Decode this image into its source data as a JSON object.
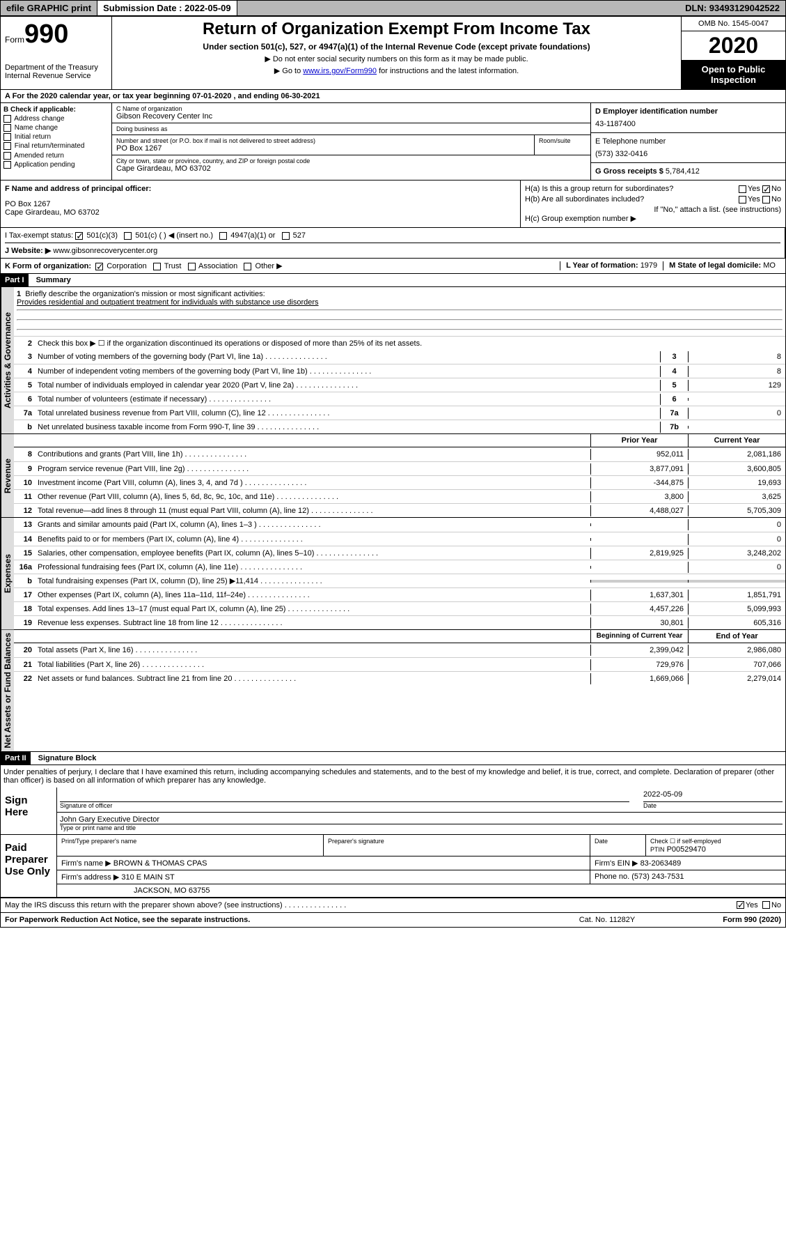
{
  "topbar": {
    "efile": "efile GRAPHIC print",
    "sub_label": "Submission Date :",
    "sub_date": "2022-05-09",
    "dln_label": "DLN:",
    "dln": "93493129042522"
  },
  "header": {
    "form_label": "Form",
    "form_num": "990",
    "dept": "Department of the Treasury\nInternal Revenue Service",
    "title": "Return of Organization Exempt From Income Tax",
    "subtitle": "Under section 501(c), 527, or 4947(a)(1) of the Internal Revenue Code (except private foundations)",
    "note1": "▶ Do not enter social security numbers on this form as it may be made public.",
    "note2_pre": "▶ Go to ",
    "note2_link": "www.irs.gov/Form990",
    "note2_post": " for instructions and the latest information.",
    "omb": "OMB No. 1545-0047",
    "year": "2020",
    "inspect": "Open to Public Inspection"
  },
  "row_a": "A For the 2020 calendar year, or tax year beginning 07-01-2020   , and ending 06-30-2021",
  "col_b": {
    "title": "B Check if applicable:",
    "items": [
      "Address change",
      "Name change",
      "Initial return",
      "Final return/terminated",
      "Amended return",
      "Application pending"
    ]
  },
  "col_c": {
    "name_label": "C Name of organization",
    "name": "Gibson Recovery Center Inc",
    "dba_label": "Doing business as",
    "dba": "",
    "street_label": "Number and street (or P.O. box if mail is not delivered to street address)",
    "street": "PO Box 1267",
    "room_label": "Room/suite",
    "city_label": "City or town, state or province, country, and ZIP or foreign postal code",
    "city": "Cape Girardeau, MO  63702"
  },
  "col_d": {
    "label": "D Employer identification number",
    "value": "43-1187400"
  },
  "col_e": {
    "label": "E Telephone number",
    "value": "(573) 332-0416"
  },
  "col_g": {
    "label": "G Gross receipts $",
    "value": "5,784,412"
  },
  "col_f": {
    "label": "F  Name and address of principal officer:",
    "addr1": "PO Box 1267",
    "addr2": "Cape Girardeau, MO  63702"
  },
  "col_h": {
    "a_label": "H(a)  Is this a group return for subordinates?",
    "b_label": "H(b)  Are all subordinates included?",
    "b_note": "If \"No,\" attach a list. (see instructions)",
    "c_label": "H(c)  Group exemption number ▶"
  },
  "row_i": {
    "label": "I   Tax-exempt status:",
    "opts": [
      "501(c)(3)",
      "501(c) (  ) ◀ (insert no.)",
      "4947(a)(1) or",
      "527"
    ]
  },
  "row_j": {
    "label": "J   Website: ▶ ",
    "value": "www.gibsonrecoverycenter.org"
  },
  "row_k": {
    "label": "K Form of organization:",
    "opts": [
      "Corporation",
      "Trust",
      "Association",
      "Other ▶"
    ],
    "l_label": "L Year of formation:",
    "l_val": "1979",
    "m_label": "M State of legal domicile:",
    "m_val": "MO"
  },
  "part1": {
    "header": "Part I",
    "title": "Summary",
    "line1_label": "Briefly describe the organization's mission or most significant activities:",
    "line1_text": "Provides residential and outpatient treatment for individuals with substance use disorders",
    "line2": "Check this box ▶ ☐  if the organization discontinued its operations or disposed of more than 25% of its net assets.",
    "gov_lines": [
      {
        "n": "3",
        "t": "Number of voting members of the governing body (Part VI, line 1a)",
        "b": "3",
        "v": "8"
      },
      {
        "n": "4",
        "t": "Number of independent voting members of the governing body (Part VI, line 1b)",
        "b": "4",
        "v": "8"
      },
      {
        "n": "5",
        "t": "Total number of individuals employed in calendar year 2020 (Part V, line 2a)",
        "b": "5",
        "v": "129"
      },
      {
        "n": "6",
        "t": "Total number of volunteers (estimate if necessary)",
        "b": "6",
        "v": ""
      },
      {
        "n": "7a",
        "t": "Total unrelated business revenue from Part VIII, column (C), line 12",
        "b": "7a",
        "v": "0"
      },
      {
        "n": "b",
        "t": "Net unrelated business taxable income from Form 990-T, line 39",
        "b": "7b",
        "v": ""
      }
    ],
    "col_prior": "Prior Year",
    "col_current": "Current Year",
    "rev_lines": [
      {
        "n": "8",
        "t": "Contributions and grants (Part VIII, line 1h)",
        "p": "952,011",
        "c": "2,081,186"
      },
      {
        "n": "9",
        "t": "Program service revenue (Part VIII, line 2g)",
        "p": "3,877,091",
        "c": "3,600,805"
      },
      {
        "n": "10",
        "t": "Investment income (Part VIII, column (A), lines 3, 4, and 7d )",
        "p": "-344,875",
        "c": "19,693"
      },
      {
        "n": "11",
        "t": "Other revenue (Part VIII, column (A), lines 5, 6d, 8c, 9c, 10c, and 11e)",
        "p": "3,800",
        "c": "3,625"
      },
      {
        "n": "12",
        "t": "Total revenue—add lines 8 through 11 (must equal Part VIII, column (A), line 12)",
        "p": "4,488,027",
        "c": "5,705,309"
      }
    ],
    "exp_lines": [
      {
        "n": "13",
        "t": "Grants and similar amounts paid (Part IX, column (A), lines 1–3 )",
        "p": "",
        "c": "0"
      },
      {
        "n": "14",
        "t": "Benefits paid to or for members (Part IX, column (A), line 4)",
        "p": "",
        "c": "0"
      },
      {
        "n": "15",
        "t": "Salaries, other compensation, employee benefits (Part IX, column (A), lines 5–10)",
        "p": "2,819,925",
        "c": "3,248,202"
      },
      {
        "n": "16a",
        "t": "Professional fundraising fees (Part IX, column (A), line 11e)",
        "p": "",
        "c": "0"
      },
      {
        "n": "b",
        "t": "Total fundraising expenses (Part IX, column (D), line 25) ▶11,414",
        "p": "GRAY",
        "c": "GRAY"
      },
      {
        "n": "17",
        "t": "Other expenses (Part IX, column (A), lines 11a–11d, 11f–24e)",
        "p": "1,637,301",
        "c": "1,851,791"
      },
      {
        "n": "18",
        "t": "Total expenses. Add lines 13–17 (must equal Part IX, column (A), line 25)",
        "p": "4,457,226",
        "c": "5,099,993"
      },
      {
        "n": "19",
        "t": "Revenue less expenses. Subtract line 18 from line 12",
        "p": "30,801",
        "c": "605,316"
      }
    ],
    "col_begin": "Beginning of Current Year",
    "col_end": "End of Year",
    "net_lines": [
      {
        "n": "20",
        "t": "Total assets (Part X, line 16)",
        "p": "2,399,042",
        "c": "2,986,080"
      },
      {
        "n": "21",
        "t": "Total liabilities (Part X, line 26)",
        "p": "729,976",
        "c": "707,066"
      },
      {
        "n": "22",
        "t": "Net assets or fund balances. Subtract line 21 from line 20",
        "p": "1,669,066",
        "c": "2,279,014"
      }
    ]
  },
  "part2": {
    "header": "Part II",
    "title": "Signature Block",
    "perjury": "Under penalties of perjury, I declare that I have examined this return, including accompanying schedules and statements, and to the best of my knowledge and belief, it is true, correct, and complete. Declaration of preparer (other than officer) is based on all information of which preparer has any knowledge.",
    "sign_here": "Sign Here",
    "sig_officer": "Signature of officer",
    "sig_date_label": "Date",
    "sig_date": "2022-05-09",
    "sig_name": "John Gary  Executive Director",
    "sig_type": "Type or print name and title",
    "paid_label": "Paid Preparer Use Only",
    "prep_name_label": "Print/Type preparer's name",
    "prep_sig_label": "Preparer's signature",
    "date_label": "Date",
    "check_self": "Check ☐ if self-employed",
    "ptin_label": "PTIN",
    "ptin": "P00529470",
    "firm_name_label": "Firm's name    ▶",
    "firm_name": "BROWN & THOMAS CPAS",
    "firm_ein_label": "Firm's EIN ▶",
    "firm_ein": "83-2063489",
    "firm_addr_label": "Firm's address ▶",
    "firm_addr1": "310 E MAIN ST",
    "firm_addr2": "JACKSON, MO  63755",
    "phone_label": "Phone no.",
    "phone": "(573) 243-7531",
    "discuss": "May the IRS discuss this return with the preparer shown above? (see instructions)",
    "paperwork": "For Paperwork Reduction Act Notice, see the separate instructions.",
    "cat": "Cat. No. 11282Y",
    "form_foot": "Form 990 (2020)"
  },
  "labels": {
    "gov": "Activities & Governance",
    "rev": "Revenue",
    "exp": "Expenses",
    "net": "Net Assets or Fund Balances",
    "yes": "Yes",
    "no": "No"
  }
}
